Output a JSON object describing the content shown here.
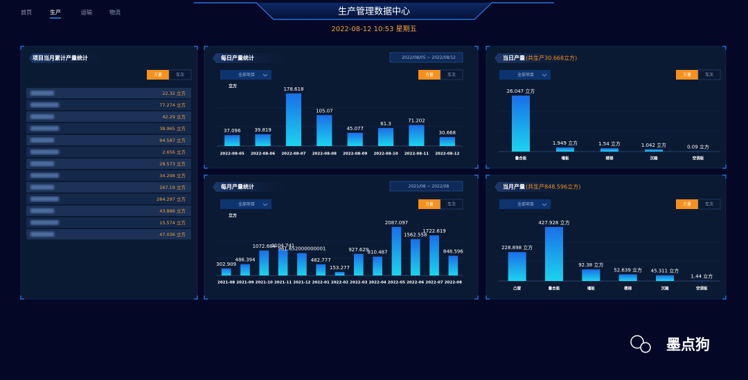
{
  "nav": [
    "首页",
    "生产",
    "运输",
    "物流"
  ],
  "header": {
    "title": "生产管理数据中心",
    "datetime": "2022-08-12 10:53 星期五"
  },
  "left_panel": {
    "title": "项目当月累计产量统计",
    "toggle": [
      "方量",
      "车次"
    ],
    "rows": [
      "22.32 立方",
      "77.274 立方",
      "42.29 立方",
      "38.965 立方",
      "94.587 立方",
      "2.656 立方",
      "28.573 立方",
      "34.298 立方",
      "167.19 立方",
      "284.297 立方",
      "43.886 立方",
      "15.574 立方",
      "47.036 立方"
    ]
  },
  "chart_data": [
    {
      "type": "bar",
      "title": "每日产量统计",
      "date_range": "2022/08/05 ~ 2022/08/12",
      "filter": "全部项目",
      "toggle": [
        "方量",
        "车次"
      ],
      "y_label": "立方",
      "categories": [
        "2022-08-05",
        "2022-08-06",
        "2022-08-07",
        "2022-08-08",
        "2022-08-09",
        "2022-08-10",
        "2022-08-11",
        "2022-08-12"
      ],
      "values": [
        37.096,
        39.819,
        178.618,
        105.07,
        45.077,
        61.3,
        71.202,
        30.668
      ],
      "ylim": [
        0,
        195
      ],
      "colors": [
        "#1a6fe8",
        "#1bd4ef"
      ]
    },
    {
      "type": "bar",
      "title": "当日产量",
      "subtitle": "(共生产30.668立方)",
      "filter": "全部项目",
      "toggle": [
        "方量",
        "车次"
      ],
      "categories": [
        "叠合板",
        "墙板",
        "楼梯",
        "沉箱",
        "空调板"
      ],
      "values": [
        26.047,
        1.949,
        1.54,
        1.042,
        0.09
      ],
      "value_labels": [
        "26.047 立方",
        "1.949 立方",
        "1.54 立方",
        "1.042 立方",
        "0.09 立方"
      ],
      "ylim": [
        0,
        28
      ],
      "colors": [
        "#1a6fe8",
        "#1bd4ef"
      ]
    },
    {
      "type": "bar",
      "title": "每月产量统计",
      "date_range": "2021/08 ~ 2022/08",
      "filter": "全部项目",
      "toggle": [
        "方量",
        "车次"
      ],
      "y_label": "立方",
      "categories": [
        "2021-08",
        "2021-09",
        "2021-10",
        "2021-11",
        "2021-12",
        "2022-01",
        "2022-02",
        "2022-03",
        "2022-04",
        "2022-05",
        "2022-06",
        "2022-07",
        "2022-08"
      ],
      "values": [
        302.909,
        486.394,
        1072.684,
        1104.741,
        961.652000000001,
        482.777,
        153.277,
        927.629,
        810.487,
        2087.097,
        1562.558,
        1722.619,
        848.596
      ],
      "ylim": [
        0,
        2200
      ],
      "colors": [
        "#1a6fe8",
        "#1bd4ef"
      ]
    },
    {
      "type": "bar",
      "title": "当月产量",
      "subtitle": "(共生产848.596立方)",
      "filter": "全部项目",
      "toggle": [
        "方量",
        "车次"
      ],
      "categories": [
        "凸窗",
        "叠合板",
        "墙板",
        "楼梯",
        "沉箱",
        "空调板"
      ],
      "values": [
        228.898,
        427.928,
        92.38,
        52.639,
        45.311,
        1.44
      ],
      "value_labels": [
        "228.898 立方",
        "427.928 立方",
        "92.38 立方",
        "52.639 立方",
        "45.311 立方",
        "1.44 立方"
      ],
      "ylim": [
        0,
        460
      ],
      "colors": [
        "#1a6fe8",
        "#1bd4ef"
      ]
    }
  ],
  "watermark": "墨点狗"
}
